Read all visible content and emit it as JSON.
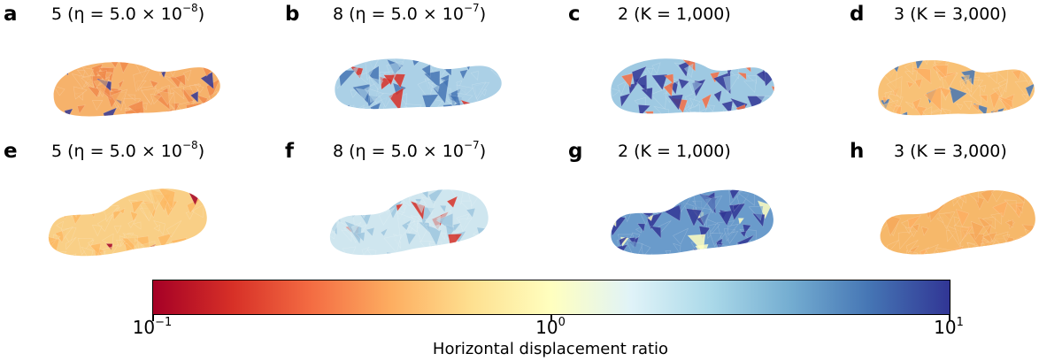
{
  "panels": [
    {
      "label": "a",
      "title_pre": "5 (η = 5.0 × 10",
      "title_exp": "−8",
      "title_post": ")",
      "base": "#f6b26b",
      "accent": "#f08a4b",
      "spots": "#313695"
    },
    {
      "label": "b",
      "title_pre": "8 (η = 5.0 × 10",
      "title_exp": "−7",
      "title_post": ")",
      "base": "#abd0e6",
      "accent": "#4575b4",
      "spots": "#d73027"
    },
    {
      "label": "c",
      "title_pre": "2 (K = 1,000)",
      "title_exp": "",
      "title_post": "",
      "base": "#9ec9e2",
      "accent": "#313695",
      "spots": "#f46d43"
    },
    {
      "label": "d",
      "title_pre": "3 (K = 3,000)",
      "title_exp": "",
      "title_post": "",
      "base": "#f8c176",
      "accent": "#fdae61",
      "spots": "#4575b4"
    },
    {
      "label": "e",
      "title_pre": "5 (η = 5.0 × 10",
      "title_exp": "−8",
      "title_post": ")",
      "base": "#f9cf86",
      "accent": "#fdb863",
      "spots": "#a50026"
    },
    {
      "label": "f",
      "title_pre": "8 (η = 5.0 × 10",
      "title_exp": "−7",
      "title_post": ")",
      "base": "#cfe6ef",
      "accent": "#9dc5de",
      "spots": "#d73027"
    },
    {
      "label": "g",
      "title_pre": "2 (K = 1,000)",
      "title_exp": "",
      "title_post": "",
      "base": "#6a9bcb",
      "accent": "#313695",
      "spots": "#ffffbf"
    },
    {
      "label": "h",
      "title_pre": "3 (K = 3,000)",
      "title_exp": "",
      "title_post": "",
      "base": "#f6b86a",
      "accent": "#f6a85a",
      "spots": "#fdae61"
    }
  ],
  "colorbar": {
    "label": "Horizontal displacement ratio",
    "ticks": [
      {
        "base": "10",
        "exp": "−1",
        "pos": 0
      },
      {
        "base": "10",
        "exp": "0",
        "pos": 0.5
      },
      {
        "base": "10",
        "exp": "1",
        "pos": 1
      }
    ]
  }
}
